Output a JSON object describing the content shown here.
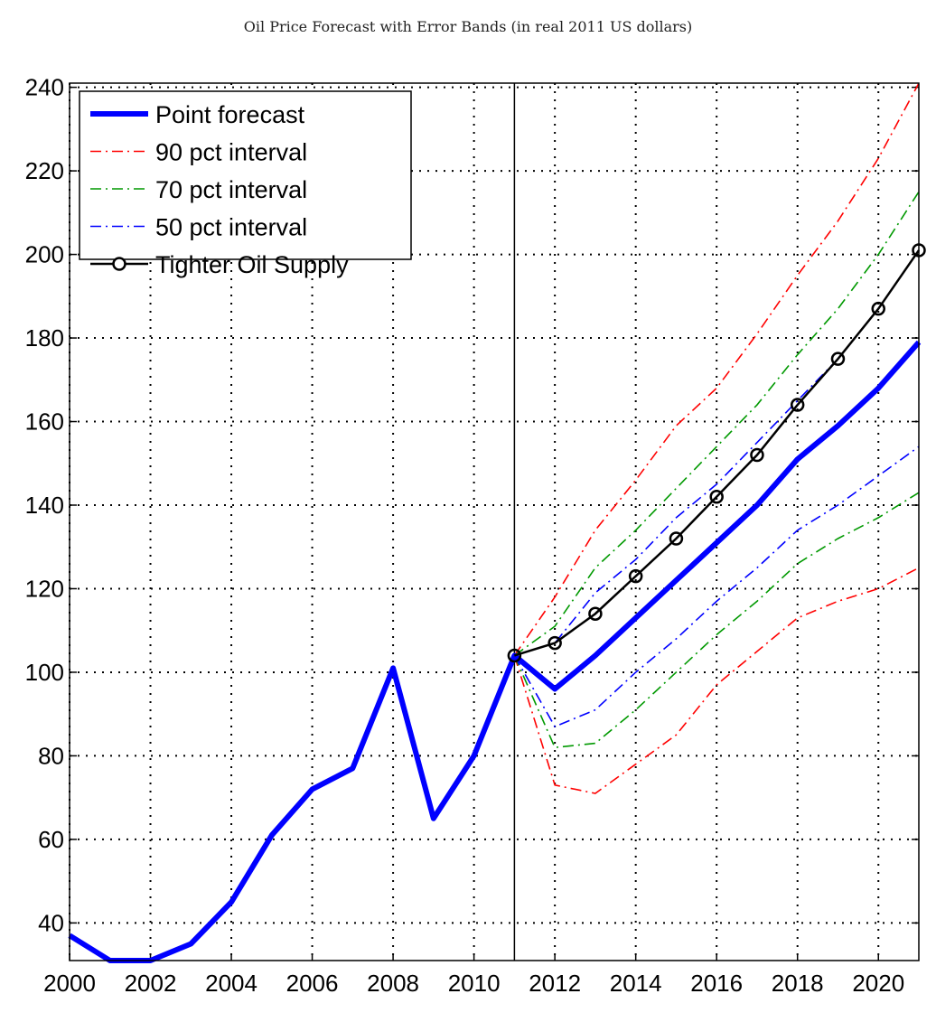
{
  "chart_data": {
    "type": "line",
    "title": "Oil Price Forecast with Error Bands (in real 2011 US dollars)",
    "xlabel": "",
    "ylabel": "",
    "xlim": [
      2000,
      2021
    ],
    "ylim": [
      31,
      241
    ],
    "grid": true,
    "legend_position": "top-left",
    "x_ticks": [
      2000,
      2002,
      2004,
      2006,
      2008,
      2010,
      2012,
      2014,
      2016,
      2018,
      2020
    ],
    "y_ticks": [
      40,
      60,
      80,
      100,
      120,
      140,
      160,
      180,
      200,
      220,
      240
    ],
    "vline_x": 2011,
    "series": [
      {
        "name": "Point forecast",
        "color": "#0000ff",
        "style": "solid-thick",
        "x": [
          2000,
          2001,
          2002,
          2003,
          2004,
          2005,
          2006,
          2007,
          2008,
          2009,
          2010,
          2011,
          2012,
          2013,
          2014,
          2015,
          2016,
          2017,
          2018,
          2019,
          2020,
          2021
        ],
        "values": [
          37,
          31,
          31,
          35,
          45,
          61,
          72,
          77,
          101,
          65,
          80,
          104,
          96,
          104,
          113,
          122,
          131,
          140,
          151,
          159,
          168,
          179
        ]
      },
      {
        "name": "90 pct interval",
        "color": "#ff0000",
        "style": "dashdot",
        "bands": [
          {
            "x": [
              2011,
              2012,
              2013,
              2014,
              2015,
              2016,
              2017,
              2018,
              2019,
              2020,
              2021
            ],
            "values": [
              104,
              118,
              134,
              146,
              159,
              168,
              181,
              195,
              208,
              223,
              241
            ]
          },
          {
            "x": [
              2011,
              2012,
              2013,
              2014,
              2015,
              2016,
              2017,
              2018,
              2019,
              2020,
              2021
            ],
            "values": [
              104,
              73,
              71,
              78,
              85,
              97,
              105,
              113,
              117,
              120,
              125
            ]
          }
        ]
      },
      {
        "name": "70 pct interval",
        "color": "#009900",
        "style": "dashdot",
        "bands": [
          {
            "x": [
              2011,
              2012,
              2013,
              2014,
              2015,
              2016,
              2017,
              2018,
              2019,
              2020,
              2021
            ],
            "values": [
              104,
              111,
              125,
              134,
              144,
              154,
              164,
              176,
              187,
              200,
              215
            ]
          },
          {
            "x": [
              2011,
              2012,
              2013,
              2014,
              2015,
              2016,
              2017,
              2018,
              2019,
              2020,
              2021
            ],
            "values": [
              104,
              82,
              83,
              91,
              100,
              109,
              117,
              126,
              132,
              137,
              143
            ]
          }
        ]
      },
      {
        "name": "50 pct interval",
        "color": "#0000ff",
        "style": "dashdot",
        "bands": [
          {
            "x": [
              2011,
              2012,
              2013,
              2014,
              2015,
              2016,
              2017,
              2018,
              2019,
              2020,
              2021
            ],
            "values": [
              104,
              107,
              119,
              127,
              137,
              145,
              155,
              165,
              175,
              187,
              201
            ]
          },
          {
            "x": [
              2011,
              2012,
              2013,
              2014,
              2015,
              2016,
              2017,
              2018,
              2019,
              2020,
              2021
            ],
            "values": [
              104,
              87,
              91,
              100,
              108,
              117,
              125,
              134,
              140,
              147,
              154
            ]
          }
        ]
      },
      {
        "name": "Tighter Oil Supply",
        "color": "#000000",
        "style": "solid-circles",
        "x": [
          2011,
          2012,
          2013,
          2014,
          2015,
          2016,
          2017,
          2018,
          2019,
          2020,
          2021
        ],
        "values": [
          104,
          107,
          114,
          123,
          132,
          142,
          152,
          164,
          175,
          187,
          201
        ]
      }
    ]
  }
}
